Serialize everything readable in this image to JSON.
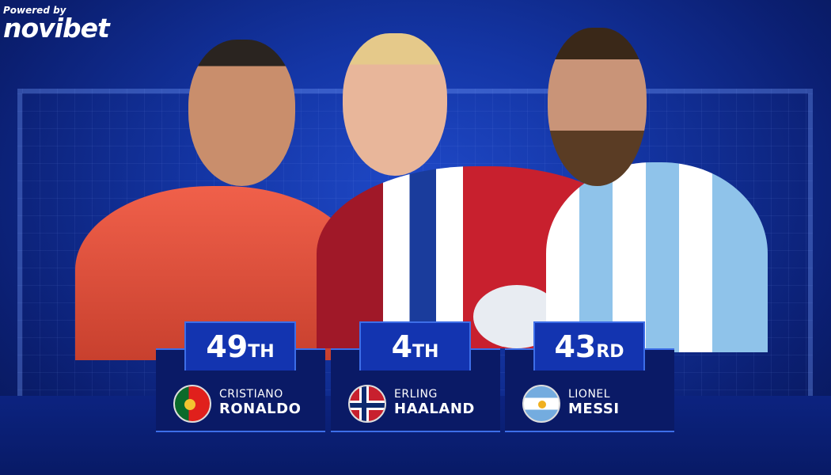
{
  "brand": {
    "powered_by": "Powered by",
    "name": "novibet"
  },
  "players": [
    {
      "first": "CRISTIANO",
      "last": "RONALDO",
      "rank": "49",
      "suffix": "TH",
      "flag": "portugal-flag-icon",
      "shirt": "#e8543e"
    },
    {
      "first": "ERLING",
      "last": "HAALAND",
      "rank": "4",
      "suffix": "TH",
      "flag": "norway-flag-icon",
      "shirt": "#c8202e"
    },
    {
      "first": "LIONEL",
      "last": "MESSI",
      "rank": "43",
      "suffix": "RD",
      "flag": "argentina-flag-icon",
      "shirt": "#8fc3ea"
    }
  ],
  "colors": {
    "background": "#1436a6",
    "card": "#0a1a66",
    "rank_box": "#1334b0",
    "accent": "#3d6ee8"
  }
}
